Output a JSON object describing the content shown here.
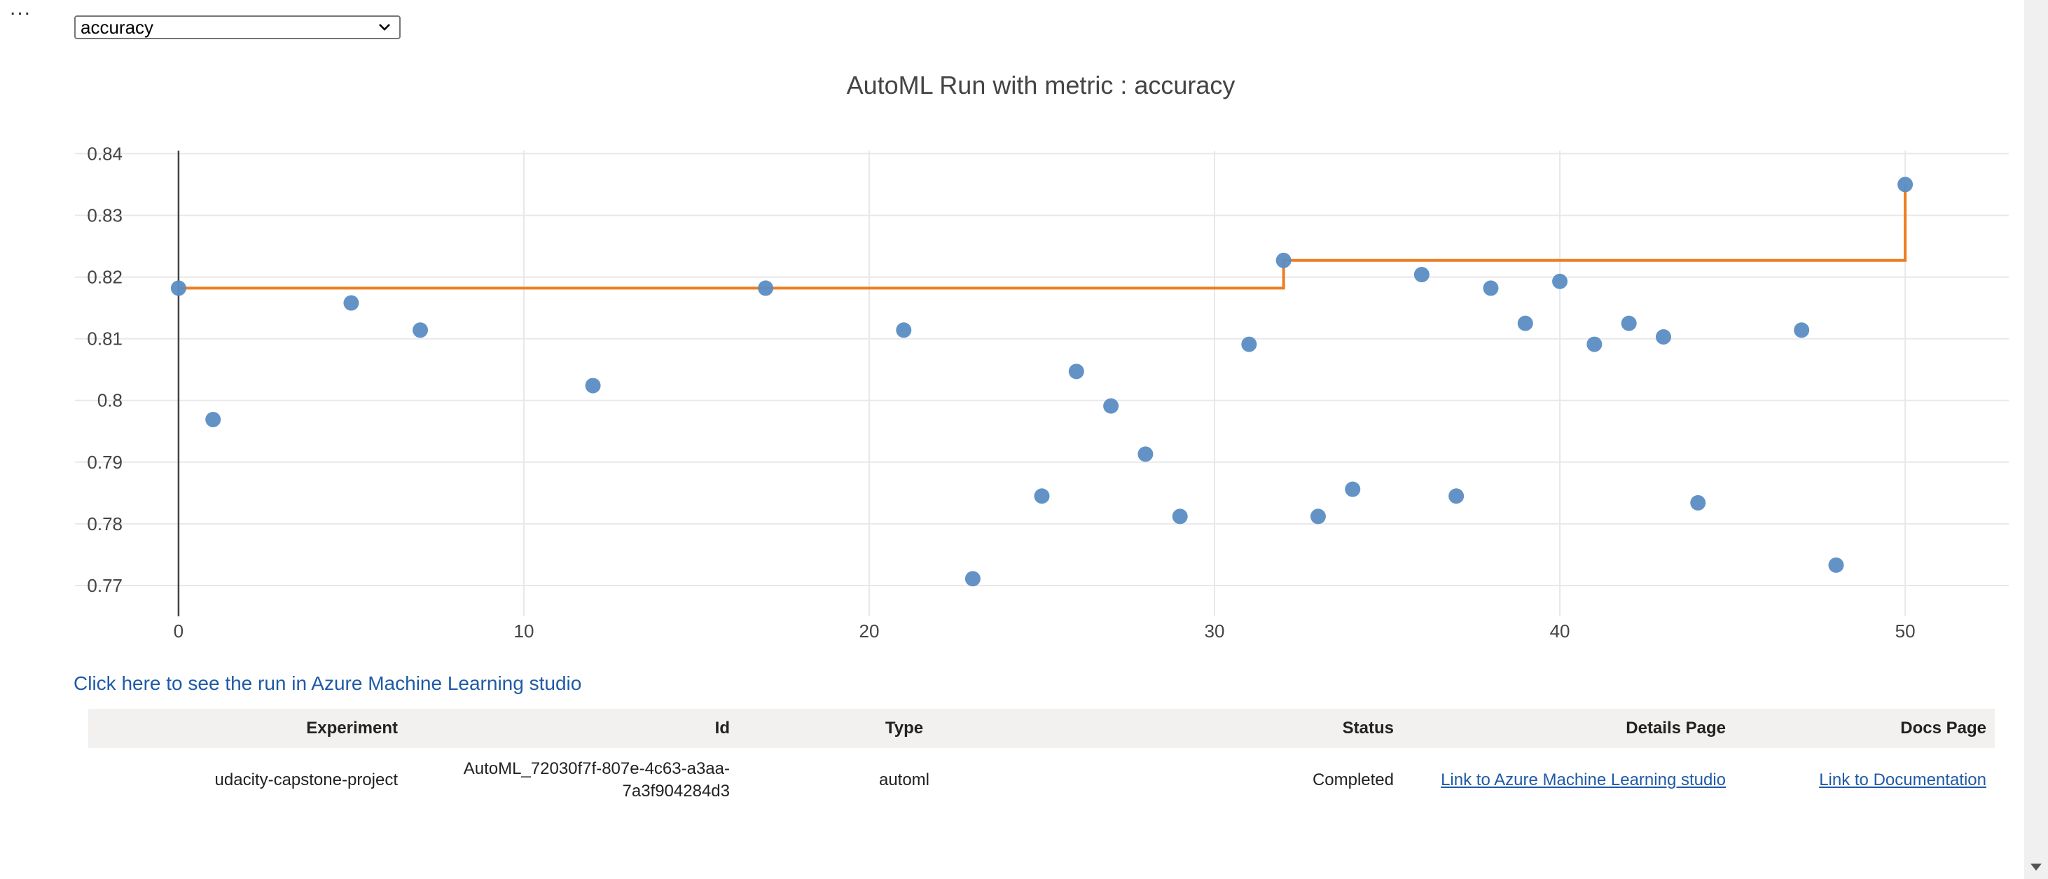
{
  "cell": {
    "ellipsis": "..."
  },
  "metric_dropdown": {
    "selected": "accuracy"
  },
  "chart_data": {
    "type": "scatter",
    "title": "AutoML Run with metric : accuracy",
    "xlabel": "",
    "ylabel": "",
    "xlim": [
      -3,
      53
    ],
    "ylim": [
      0.765,
      0.8405
    ],
    "xticks": [
      0,
      10,
      20,
      30,
      40,
      50
    ],
    "yticks": [
      0.77,
      0.78,
      0.79,
      0.8,
      0.81,
      0.82,
      0.83,
      0.84
    ],
    "ytick_labels": [
      "0.77",
      "0.78",
      "0.79",
      "0.8",
      "0.81",
      "0.82",
      "0.83",
      "0.84"
    ],
    "grid": true,
    "series": [
      {
        "name": "runs",
        "kind": "scatter",
        "color": "#5b8dc3",
        "x": [
          0,
          1,
          5,
          7,
          12,
          17,
          21,
          23,
          25,
          26,
          27,
          28,
          29,
          31,
          32,
          33,
          34,
          36,
          37,
          38,
          39,
          40,
          41,
          42,
          43,
          44,
          47,
          48,
          50
        ],
        "y": [
          0.8182,
          0.7969,
          0.8158,
          0.8114,
          0.8024,
          0.8182,
          0.8114,
          0.7711,
          0.7845,
          0.8047,
          0.7991,
          0.7913,
          0.7812,
          0.8091,
          0.8227,
          0.7812,
          0.7856,
          0.8204,
          0.7845,
          0.8182,
          0.8125,
          0.8193,
          0.8091,
          0.8125,
          0.8103,
          0.7834,
          0.8114,
          0.7733,
          0.835
        ]
      },
      {
        "name": "best so far",
        "kind": "step",
        "color": "#ed7d22",
        "x": [
          0,
          32,
          50
        ],
        "y": [
          0.8182,
          0.8227,
          0.835
        ]
      }
    ]
  },
  "studio_link": {
    "text": "Click here to see the run in Azure Machine Learning studio"
  },
  "run_table": {
    "headers": {
      "experiment": "Experiment",
      "id": "Id",
      "type": "Type",
      "status": "Status",
      "details": "Details Page",
      "docs": "Docs Page"
    },
    "row": {
      "experiment": "udacity-capstone-project",
      "id": "AutoML_72030f7f-807e-4c63-a3aa-7a3f904284d3",
      "type": "automl",
      "status": "Completed",
      "details_link": "Link to Azure Machine Learning studio",
      "docs_link": "Link to Documentation"
    }
  }
}
